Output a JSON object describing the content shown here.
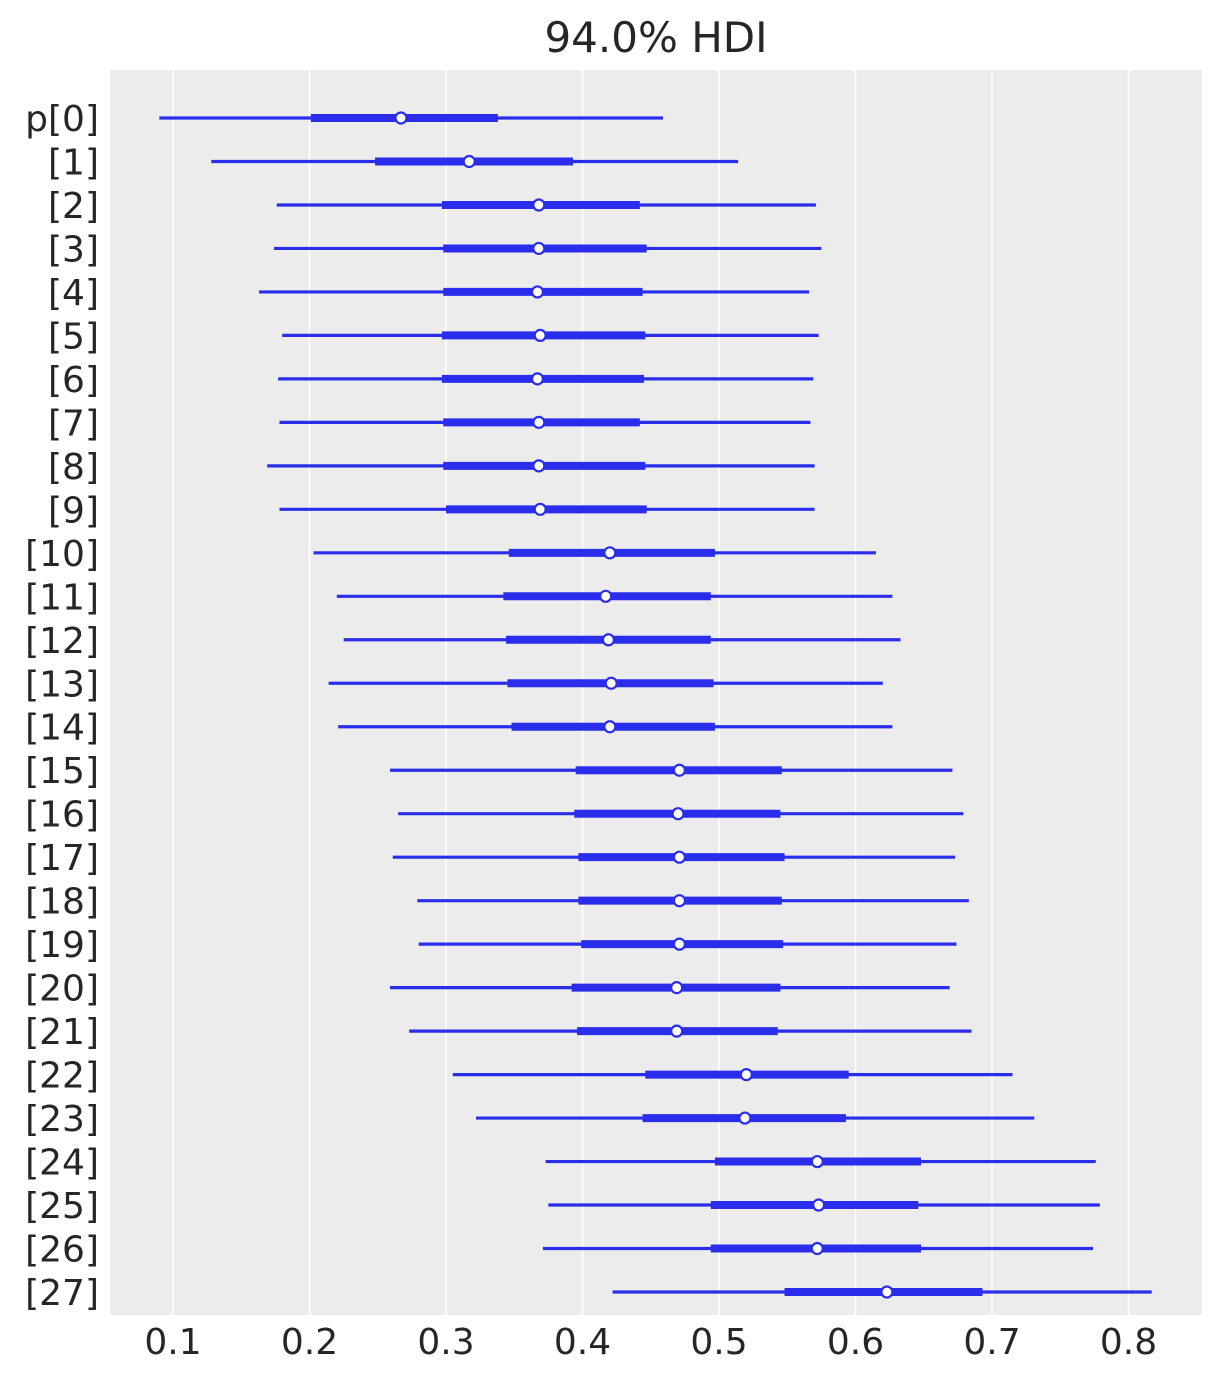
{
  "chart_data": {
    "type": "forest",
    "title": "94.0% HDI",
    "xlabel": "",
    "ylabel": "",
    "xlim": [
      0.05,
      0.85
    ],
    "x_ticks": [
      "0.1",
      "0.2",
      "0.3",
      "0.4",
      "0.5",
      "0.6",
      "0.7",
      "0.8"
    ],
    "grid": true,
    "colors": {
      "series": "#2a2eec",
      "background": "#ececec",
      "grid": "#ffffff",
      "text": "#262626"
    },
    "labels": [
      "p[0]",
      "[1]",
      "[2]",
      "[3]",
      "[4]",
      "[5]",
      "[6]",
      "[7]",
      "[8]",
      "[9]",
      "[10]",
      "[11]",
      "[12]",
      "[13]",
      "[14]",
      "[15]",
      "[16]",
      "[17]",
      "[18]",
      "[19]",
      "[20]",
      "[21]",
      "[22]",
      "[23]",
      "[24]",
      "[25]",
      "[26]",
      "[27]"
    ],
    "hdi_low": [
      0.09,
      0.128,
      0.176,
      0.174,
      0.163,
      0.18,
      0.177,
      0.178,
      0.169,
      0.178,
      0.203,
      0.22,
      0.225,
      0.214,
      0.221,
      0.259,
      0.265,
      0.261,
      0.279,
      0.28,
      0.259,
      0.273,
      0.305,
      0.322,
      0.373,
      0.375,
      0.371,
      0.422
    ],
    "iqr_low": [
      0.201,
      0.248,
      0.297,
      0.298,
      0.298,
      0.297,
      0.297,
      0.298,
      0.298,
      0.3,
      0.346,
      0.342,
      0.344,
      0.345,
      0.348,
      0.395,
      0.394,
      0.397,
      0.397,
      0.399,
      0.392,
      0.396,
      0.446,
      0.444,
      0.497,
      0.494,
      0.494,
      0.548
    ],
    "median": [
      0.267,
      0.317,
      0.368,
      0.368,
      0.367,
      0.369,
      0.367,
      0.368,
      0.368,
      0.369,
      0.42,
      0.417,
      0.419,
      0.421,
      0.42,
      0.471,
      0.47,
      0.471,
      0.471,
      0.471,
      0.469,
      0.469,
      0.52,
      0.519,
      0.572,
      0.573,
      0.572,
      0.623
    ],
    "iqr_high": [
      0.338,
      0.393,
      0.442,
      0.447,
      0.444,
      0.446,
      0.445,
      0.442,
      0.446,
      0.447,
      0.497,
      0.494,
      0.494,
      0.496,
      0.497,
      0.546,
      0.545,
      0.548,
      0.546,
      0.547,
      0.545,
      0.543,
      0.595,
      0.593,
      0.648,
      0.646,
      0.648,
      0.693
    ],
    "hdi_high": [
      0.459,
      0.514,
      0.571,
      0.575,
      0.566,
      0.573,
      0.569,
      0.567,
      0.57,
      0.57,
      0.615,
      0.627,
      0.633,
      0.62,
      0.627,
      0.671,
      0.679,
      0.673,
      0.683,
      0.674,
      0.669,
      0.685,
      0.715,
      0.731,
      0.776,
      0.779,
      0.774,
      0.817
    ]
  }
}
